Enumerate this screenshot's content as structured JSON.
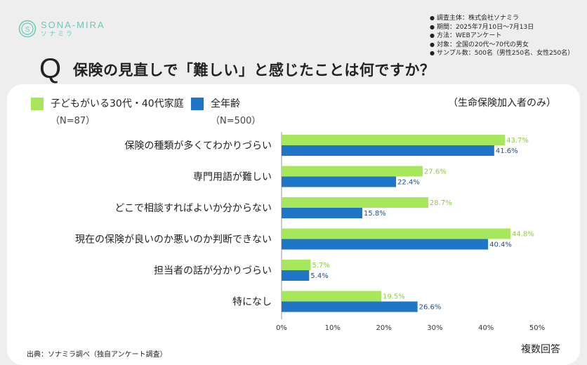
{
  "brand": {
    "name": "SONA-MIRA",
    "sub": "ソナミラ"
  },
  "meta": [
    "調査主体：株式会社ソナミラ",
    "期間：2025年7月10日〜7月13日",
    "方法：WEBアンケート",
    "対象：全国の20代〜70代の男女",
    "サンプル数：500名（男性250名、女性250名）"
  ],
  "question": {
    "mark": "Q",
    "text": "保険の見直しで「難しい」と感じたことは何ですか？"
  },
  "note": "（生命保険加入者のみ）",
  "source": "出典：ソナミラ調べ（独自アンケート調査）",
  "multi_answer": "複数回答",
  "colors": {
    "green": "#a6e85a",
    "blue": "#1f76c6",
    "green_label": "#8acc3a",
    "blue_label": "#1a4f8f"
  },
  "chart_data": {
    "type": "bar",
    "orientation": "horizontal",
    "categories": [
      "保険の種類が多くてわかりづらい",
      "専門用語が難しい",
      "どこで相談すればよいか分からない",
      "現在の保険が良いのか悪いのか判断できない",
      "担当者の話が分かりづらい",
      "特になし"
    ],
    "series": [
      {
        "name": "子どもがいる30代・40代家庭",
        "n": "（N=87）",
        "values": [
          43.7,
          27.6,
          28.7,
          44.8,
          5.7,
          19.5
        ],
        "labels": [
          "43.7%",
          "27.6%",
          "28.7%",
          "44.8%",
          "5.7%",
          "19.5%"
        ]
      },
      {
        "name": "全年齢",
        "n": "（N=500）",
        "values": [
          41.6,
          22.4,
          15.8,
          40.4,
          5.4,
          26.6
        ],
        "labels": [
          "41.6%",
          "22.4%",
          "15.8%",
          "40.4%",
          "5.4%",
          "26.6%"
        ]
      }
    ],
    "xlim": [
      0,
      50
    ],
    "ticks": [
      "0%",
      "10%",
      "20%",
      "30%",
      "40%",
      "50%"
    ],
    "legend": "top-left",
    "grid": false
  }
}
